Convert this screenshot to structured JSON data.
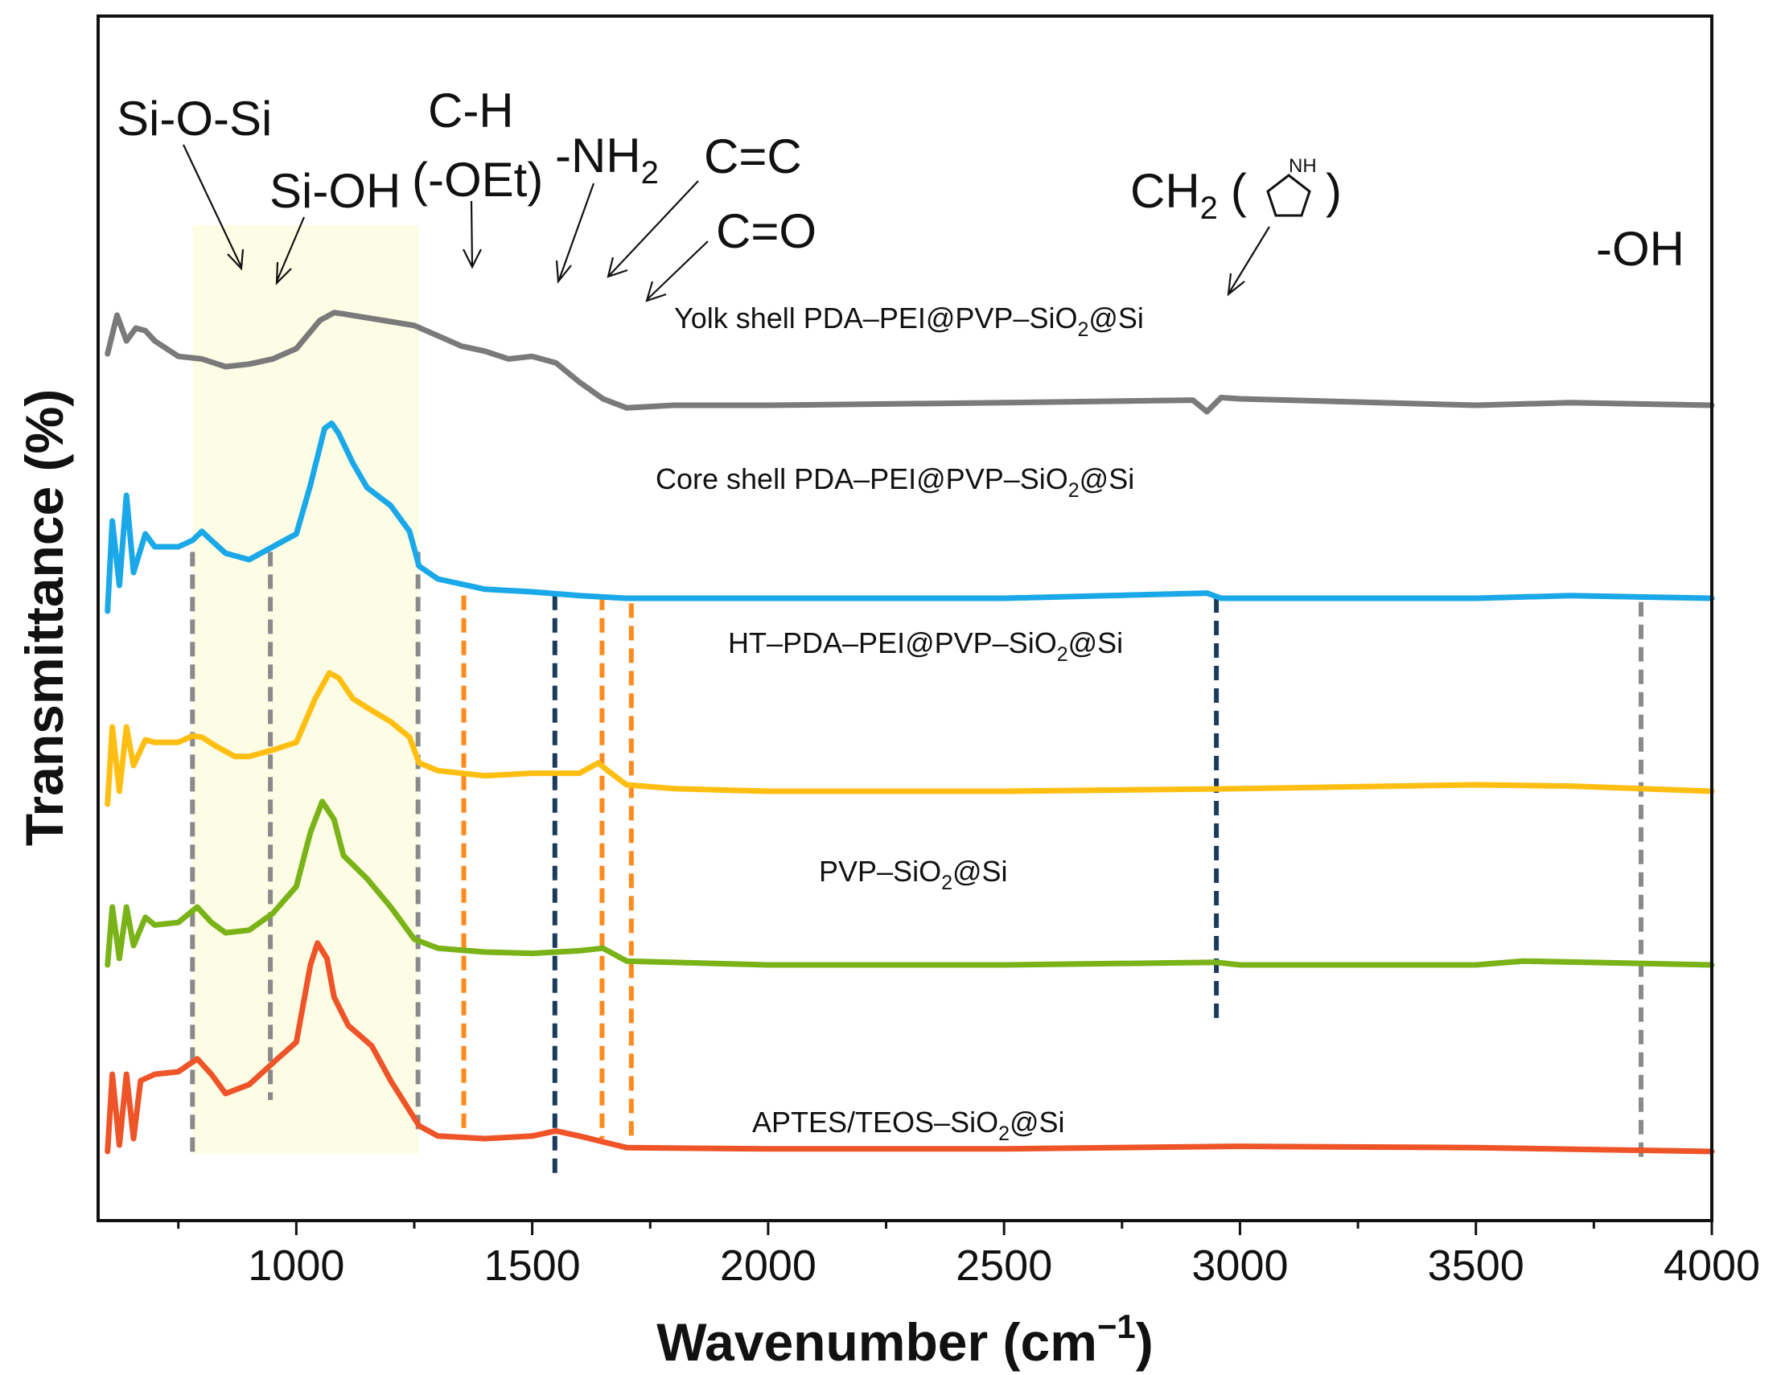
{
  "chart_data": {
    "type": "line",
    "title": "",
    "xlabel": "Wavenumber (cm",
    "xlabel_sup": "−1",
    "xlabel_close": ")",
    "ylabel": "Transmittance (%)",
    "xlim": [
      580,
      4000
    ],
    "x_ticks": [
      1000,
      1500,
      2000,
      2500,
      3000,
      3500,
      4000
    ],
    "y_ticks": "none",
    "offset_spacing": 1.4,
    "colors": {
      "yolk": "#7a7a7a",
      "core": "#1aa8e8",
      "ht": "#ffbe12",
      "pvp": "#7ab317",
      "aptes": "#ee5428",
      "highlight": "#fdfde6",
      "orange_marker": "#ff8a1e",
      "navy_marker": "#1b3a5c",
      "gray_marker": "#8a8a8a"
    },
    "highlight_range": [
      780,
      1260
    ],
    "series": [
      {
        "name": "Yolk shell PDA–PEI@PVP–SiO2@Si",
        "label_parts": [
          "Yolk shell PDA–PEI@PVP–SiO",
          "2",
          "@Si"
        ],
        "color_key": "yolk",
        "offset": 4,
        "points": [
          [
            600,
            0.6
          ],
          [
            620,
            0.9
          ],
          [
            640,
            0.7
          ],
          [
            660,
            0.8
          ],
          [
            680,
            0.78
          ],
          [
            700,
            0.7
          ],
          [
            750,
            0.58
          ],
          [
            800,
            0.56
          ],
          [
            850,
            0.5
          ],
          [
            900,
            0.52
          ],
          [
            950,
            0.56
          ],
          [
            1000,
            0.64
          ],
          [
            1050,
            0.86
          ],
          [
            1080,
            0.92
          ],
          [
            1100,
            0.91
          ],
          [
            1150,
            0.88
          ],
          [
            1200,
            0.85
          ],
          [
            1250,
            0.82
          ],
          [
            1300,
            0.74
          ],
          [
            1350,
            0.66
          ],
          [
            1400,
            0.62
          ],
          [
            1450,
            0.56
          ],
          [
            1500,
            0.58
          ],
          [
            1550,
            0.53
          ],
          [
            1600,
            0.38
          ],
          [
            1650,
            0.25
          ],
          [
            1700,
            0.18
          ],
          [
            1800,
            0.2
          ],
          [
            2000,
            0.2
          ],
          [
            2500,
            0.22
          ],
          [
            2900,
            0.24
          ],
          [
            2930,
            0.15
          ],
          [
            2960,
            0.26
          ],
          [
            3000,
            0.25
          ],
          [
            3500,
            0.2
          ],
          [
            3700,
            0.22
          ],
          [
            4000,
            0.2
          ]
        ]
      },
      {
        "name": "Core shell PDA–PEI@PVP–SiO2@Si",
        "label_parts": [
          "Core shell PDA–PEI@PVP–SiO",
          "2",
          "@Si"
        ],
        "color_key": "core",
        "offset": 3,
        "points": [
          [
            600,
            0.0
          ],
          [
            610,
            0.7
          ],
          [
            625,
            0.2
          ],
          [
            640,
            0.9
          ],
          [
            655,
            0.3
          ],
          [
            680,
            0.6
          ],
          [
            700,
            0.5
          ],
          [
            750,
            0.5
          ],
          [
            780,
            0.55
          ],
          [
            800,
            0.62
          ],
          [
            820,
            0.55
          ],
          [
            850,
            0.45
          ],
          [
            900,
            0.4
          ],
          [
            950,
            0.5
          ],
          [
            1000,
            0.6
          ],
          [
            1030,
            0.98
          ],
          [
            1060,
            1.42
          ],
          [
            1075,
            1.46
          ],
          [
            1090,
            1.38
          ],
          [
            1120,
            1.15
          ],
          [
            1150,
            0.96
          ],
          [
            1200,
            0.82
          ],
          [
            1240,
            0.62
          ],
          [
            1260,
            0.35
          ],
          [
            1300,
            0.25
          ],
          [
            1400,
            0.17
          ],
          [
            1500,
            0.15
          ],
          [
            1600,
            0.12
          ],
          [
            1700,
            0.1
          ],
          [
            2000,
            0.1
          ],
          [
            2500,
            0.1
          ],
          [
            2930,
            0.14
          ],
          [
            2960,
            0.1
          ],
          [
            3000,
            0.1
          ],
          [
            3500,
            0.1
          ],
          [
            3700,
            0.12
          ],
          [
            4000,
            0.1
          ]
        ]
      },
      {
        "name": "HT–PDA–PEI@PVP–SiO2@Si",
        "label_parts": [
          "HT–PDA–PEI@PVP–SiO",
          "2",
          "@Si"
        ],
        "color_key": "ht",
        "offset": 2,
        "points": [
          [
            600,
            -0.1
          ],
          [
            610,
            0.5
          ],
          [
            625,
            0.0
          ],
          [
            640,
            0.5
          ],
          [
            655,
            0.2
          ],
          [
            680,
            0.4
          ],
          [
            700,
            0.38
          ],
          [
            750,
            0.38
          ],
          [
            780,
            0.43
          ],
          [
            800,
            0.42
          ],
          [
            830,
            0.35
          ],
          [
            870,
            0.27
          ],
          [
            900,
            0.27
          ],
          [
            950,
            0.32
          ],
          [
            1000,
            0.38
          ],
          [
            1040,
            0.72
          ],
          [
            1070,
            0.92
          ],
          [
            1090,
            0.88
          ],
          [
            1120,
            0.72
          ],
          [
            1150,
            0.65
          ],
          [
            1200,
            0.54
          ],
          [
            1240,
            0.42
          ],
          [
            1260,
            0.22
          ],
          [
            1300,
            0.16
          ],
          [
            1400,
            0.12
          ],
          [
            1500,
            0.14
          ],
          [
            1600,
            0.14
          ],
          [
            1640,
            0.22
          ],
          [
            1660,
            0.16
          ],
          [
            1700,
            0.05
          ],
          [
            1800,
            0.02
          ],
          [
            2000,
            0.0
          ],
          [
            2500,
            0.0
          ],
          [
            3000,
            0.02
          ],
          [
            3500,
            0.05
          ],
          [
            3700,
            0.04
          ],
          [
            4000,
            0.0
          ]
        ]
      },
      {
        "name": "PVP–SiO2@Si",
        "label_parts": [
          "PVP–SiO",
          "2",
          "@Si"
        ],
        "color_key": "pvp",
        "offset": 1,
        "points": [
          [
            600,
            0.05
          ],
          [
            610,
            0.5
          ],
          [
            625,
            0.1
          ],
          [
            640,
            0.5
          ],
          [
            655,
            0.2
          ],
          [
            680,
            0.42
          ],
          [
            700,
            0.36
          ],
          [
            750,
            0.38
          ],
          [
            790,
            0.5
          ],
          [
            820,
            0.38
          ],
          [
            850,
            0.3
          ],
          [
            900,
            0.32
          ],
          [
            950,
            0.45
          ],
          [
            1000,
            0.66
          ],
          [
            1030,
            1.08
          ],
          [
            1055,
            1.32
          ],
          [
            1080,
            1.18
          ],
          [
            1100,
            0.9
          ],
          [
            1150,
            0.72
          ],
          [
            1200,
            0.5
          ],
          [
            1250,
            0.25
          ],
          [
            1300,
            0.18
          ],
          [
            1400,
            0.15
          ],
          [
            1500,
            0.14
          ],
          [
            1600,
            0.16
          ],
          [
            1650,
            0.18
          ],
          [
            1700,
            0.08
          ],
          [
            2000,
            0.05
          ],
          [
            2500,
            0.05
          ],
          [
            2950,
            0.07
          ],
          [
            3000,
            0.05
          ],
          [
            3500,
            0.05
          ],
          [
            3600,
            0.08
          ],
          [
            4000,
            0.05
          ]
        ]
      },
      {
        "name": "APTES/TEOS–SiO2@Si",
        "label_parts": [
          "APTES/TEOS–SiO",
          "2",
          "@Si"
        ],
        "color_key": "aptes",
        "offset": 0,
        "points": [
          [
            600,
            0.0
          ],
          [
            610,
            0.6
          ],
          [
            625,
            0.05
          ],
          [
            640,
            0.6
          ],
          [
            655,
            0.1
          ],
          [
            670,
            0.55
          ],
          [
            700,
            0.6
          ],
          [
            750,
            0.62
          ],
          [
            790,
            0.72
          ],
          [
            820,
            0.6
          ],
          [
            850,
            0.45
          ],
          [
            900,
            0.52
          ],
          [
            960,
            0.72
          ],
          [
            1000,
            0.85
          ],
          [
            1030,
            1.45
          ],
          [
            1045,
            1.62
          ],
          [
            1065,
            1.5
          ],
          [
            1080,
            1.2
          ],
          [
            1110,
            0.98
          ],
          [
            1160,
            0.82
          ],
          [
            1200,
            0.55
          ],
          [
            1260,
            0.2
          ],
          [
            1300,
            0.12
          ],
          [
            1400,
            0.1
          ],
          [
            1500,
            0.12
          ],
          [
            1550,
            0.16
          ],
          [
            1600,
            0.12
          ],
          [
            1700,
            0.03
          ],
          [
            2000,
            0.02
          ],
          [
            2500,
            0.02
          ],
          [
            3000,
            0.04
          ],
          [
            3500,
            0.03
          ],
          [
            4000,
            0.0
          ]
        ]
      }
    ],
    "markers": [
      {
        "x": 780,
        "color_key": "gray_marker",
        "from": -0.05,
        "to": 4.66
      },
      {
        "x": 945,
        "color_key": "gray_marker",
        "from": 0.4,
        "to": 4.66
      },
      {
        "x": 1258,
        "color_key": "gray_marker",
        "from": 0.15,
        "to": 4.66
      },
      {
        "x": 1355,
        "color_key": "orange_marker",
        "from": 0.15,
        "to": 4.32
      },
      {
        "x": 1548,
        "color_key": "navy_marker",
        "from": -0.2,
        "to": 4.32
      },
      {
        "x": 1648,
        "color_key": "orange_marker",
        "from": 0.1,
        "to": 4.32
      },
      {
        "x": 1710,
        "color_key": "orange_marker",
        "from": 0.1,
        "to": 4.26
      },
      {
        "x": 2950,
        "color_key": "navy_marker",
        "from": 1.0,
        "to": 4.3
      },
      {
        "x": 3850,
        "color_key": "gray_marker",
        "from": -0.05,
        "to": 4.27
      }
    ],
    "annotations": [
      {
        "text": "Si-O-Si",
        "sub": ""
      },
      {
        "text": "Si-OH",
        "sub": ""
      },
      {
        "text": "C-H",
        "sub": ""
      },
      {
        "text": "(-OEt)",
        "sub": ""
      },
      {
        "text": "-NH",
        "sub": "2"
      },
      {
        "text": "C=C",
        "sub": ""
      },
      {
        "text": "C=O",
        "sub": ""
      },
      {
        "text": "CH",
        "sub": "2",
        "suffix_open": "(",
        "suffix_close": ")"
      },
      {
        "text": "-OH",
        "sub": ""
      }
    ],
    "pyrrolidine_label": "NH"
  }
}
